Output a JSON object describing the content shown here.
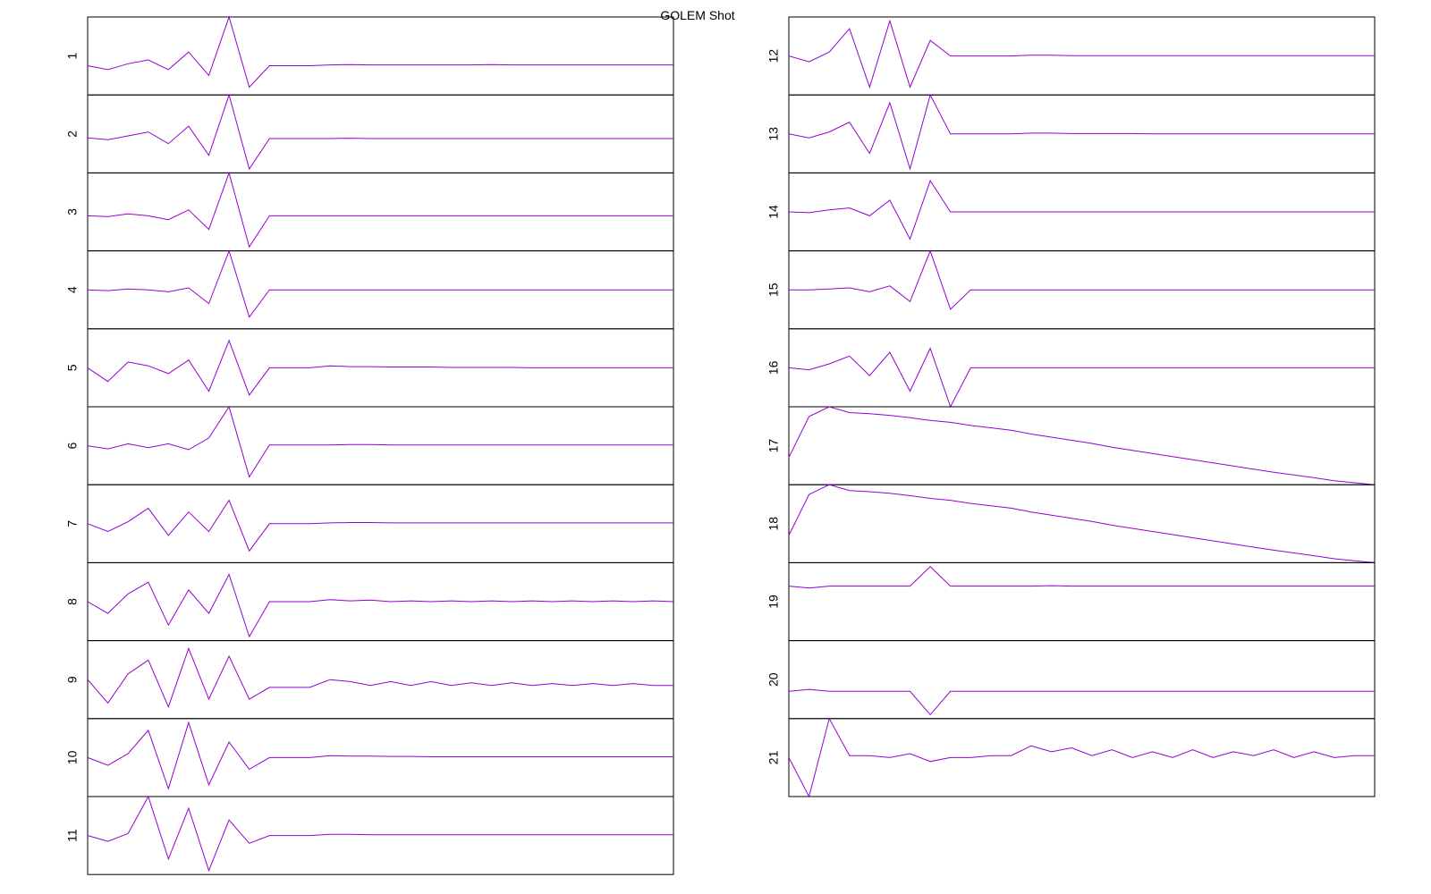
{
  "title": "GOLEM Shot",
  "chart_data": [
    {
      "type": "line",
      "title": "1",
      "color": "#9400d3",
      "ylim": [
        -1,
        1
      ],
      "values": [
        -0.25,
        -0.35,
        -0.2,
        -0.1,
        -0.35,
        0.1,
        -0.5,
        1,
        -0.8,
        -0.25,
        -0.25,
        -0.25,
        -0.23,
        -0.22,
        -0.23,
        -0.23,
        -0.23,
        -0.23,
        -0.23,
        -0.23,
        -0.22,
        -0.23,
        -0.23,
        -0.23,
        -0.23,
        -0.23,
        -0.23,
        -0.23,
        -0.23,
        -0.23
      ]
    },
    {
      "type": "line",
      "title": "2",
      "color": "#9400d3",
      "ylim": [
        -1,
        1
      ],
      "values": [
        -0.1,
        -0.15,
        -0.05,
        0.05,
        -0.25,
        0.2,
        -0.55,
        1,
        -0.9,
        -0.12,
        -0.12,
        -0.12,
        -0.12,
        -0.11,
        -0.12,
        -0.12,
        -0.12,
        -0.12,
        -0.12,
        -0.12,
        -0.12,
        -0.12,
        -0.12,
        -0.12,
        -0.12,
        -0.12,
        -0.12,
        -0.12,
        -0.12,
        -0.12
      ]
    },
    {
      "type": "line",
      "title": "3",
      "color": "#9400d3",
      "ylim": [
        -1,
        1
      ],
      "values": [
        -0.1,
        -0.12,
        -0.05,
        -0.1,
        -0.2,
        0.05,
        -0.45,
        1,
        -0.9,
        -0.1,
        -0.1,
        -0.1,
        -0.1,
        -0.1,
        -0.1,
        -0.1,
        -0.1,
        -0.1,
        -0.1,
        -0.1,
        -0.1,
        -0.1,
        -0.1,
        -0.1,
        -0.1,
        -0.1,
        -0.1,
        -0.1,
        -0.1,
        -0.1
      ]
    },
    {
      "type": "line",
      "title": "4",
      "color": "#9400d3",
      "ylim": [
        -1,
        1
      ],
      "values": [
        0.0,
        -0.02,
        0.02,
        0.0,
        -0.05,
        0.05,
        -0.35,
        1,
        -0.7,
        0.0,
        0.0,
        0.0,
        0.0,
        0.0,
        0.0,
        0.0,
        0.0,
        0.0,
        0.0,
        0.0,
        0.0,
        0.0,
        0.0,
        0.0,
        0.0,
        0.0,
        0.0,
        0.0,
        0.0,
        0.0
      ]
    },
    {
      "type": "line",
      "title": "5",
      "color": "#9400d3",
      "ylim": [
        -1,
        1
      ],
      "values": [
        0.0,
        -0.35,
        0.15,
        0.05,
        -0.15,
        0.2,
        -0.6,
        0.7,
        -0.7,
        0.0,
        0.0,
        0.0,
        0.05,
        0.03,
        0.03,
        0.02,
        0.02,
        0.02,
        0.01,
        0.01,
        0.01,
        0.01,
        0.0,
        0.0,
        0.0,
        0.0,
        0.0,
        0.0,
        0.0,
        0.0
      ]
    },
    {
      "type": "line",
      "title": "6",
      "color": "#9400d3",
      "ylim": [
        -1,
        1
      ],
      "values": [
        0.0,
        -0.08,
        0.05,
        -0.05,
        0.05,
        -0.1,
        0.2,
        1,
        -0.8,
        0.02,
        0.02,
        0.02,
        0.02,
        0.03,
        0.03,
        0.02,
        0.02,
        0.02,
        0.02,
        0.02,
        0.02,
        0.02,
        0.02,
        0.02,
        0.02,
        0.02,
        0.02,
        0.02,
        0.02,
        0.02
      ]
    },
    {
      "type": "line",
      "title": "7",
      "color": "#9400d3",
      "ylim": [
        -1,
        1
      ],
      "values": [
        0.0,
        -0.2,
        0.05,
        0.4,
        -0.3,
        0.3,
        -0.2,
        0.6,
        -0.7,
        0.0,
        0.0,
        0.0,
        0.02,
        0.03,
        0.03,
        0.02,
        0.02,
        0.02,
        0.02,
        0.02,
        0.02,
        0.02,
        0.02,
        0.02,
        0.02,
        0.02,
        0.02,
        0.02,
        0.02,
        0.02
      ]
    },
    {
      "type": "line",
      "title": "8",
      "color": "#9400d3",
      "ylim": [
        -1,
        1
      ],
      "values": [
        0.0,
        -0.3,
        0.2,
        0.5,
        -0.6,
        0.3,
        -0.3,
        0.7,
        -0.9,
        0.0,
        0.0,
        0.0,
        0.05,
        0.02,
        0.04,
        0.0,
        0.02,
        0.0,
        0.02,
        0.0,
        0.02,
        0.0,
        0.02,
        0.0,
        0.02,
        0.0,
        0.02,
        0.0,
        0.02,
        0.0
      ]
    },
    {
      "type": "line",
      "title": "9",
      "color": "#9400d3",
      "ylim": [
        -1,
        1
      ],
      "values": [
        0.0,
        -0.6,
        0.15,
        0.5,
        -0.7,
        0.8,
        -0.5,
        0.6,
        -0.5,
        -0.2,
        -0.2,
        -0.2,
        0.0,
        -0.05,
        -0.15,
        -0.05,
        -0.15,
        -0.05,
        -0.15,
        -0.08,
        -0.15,
        -0.08,
        -0.15,
        -0.1,
        -0.15,
        -0.1,
        -0.15,
        -0.1,
        -0.15,
        -0.15
      ]
    },
    {
      "type": "line",
      "title": "10",
      "color": "#9400d3",
      "ylim": [
        -1,
        1
      ],
      "values": [
        0.0,
        -0.2,
        0.1,
        0.7,
        -0.8,
        0.9,
        -0.7,
        0.4,
        -0.3,
        0.0,
        0.0,
        0.0,
        0.05,
        0.04,
        0.04,
        0.03,
        0.03,
        0.02,
        0.02,
        0.02,
        0.02,
        0.02,
        0.02,
        0.02,
        0.02,
        0.02,
        0.02,
        0.02,
        0.02,
        0.02
      ]
    },
    {
      "type": "line",
      "title": "11",
      "color": "#9400d3",
      "ylim": [
        -1,
        1
      ],
      "values": [
        0.0,
        -0.15,
        0.05,
        1,
        -0.6,
        0.7,
        -0.9,
        0.4,
        -0.2,
        0.0,
        0.0,
        0.0,
        0.03,
        0.03,
        0.02,
        0.02,
        0.02,
        0.02,
        0.02,
        0.02,
        0.02,
        0.02,
        0.02,
        0.02,
        0.02,
        0.02,
        0.02,
        0.02,
        0.02,
        0.02
      ]
    },
    {
      "type": "line",
      "title": "12",
      "color": "#9400d3",
      "ylim": [
        -1,
        1
      ],
      "values": [
        0.0,
        -0.15,
        0.1,
        0.7,
        -0.8,
        0.9,
        -0.8,
        0.4,
        0.0,
        0.0,
        0.0,
        0.0,
        0.02,
        0.02,
        0.01,
        0.01,
        0.01,
        0.01,
        0.01,
        0.01,
        0.01,
        0.01,
        0.01,
        0.01,
        0.01,
        0.01,
        0.01,
        0.01,
        0.01,
        0.01
      ]
    },
    {
      "type": "line",
      "title": "13",
      "color": "#9400d3",
      "ylim": [
        -1,
        1
      ],
      "values": [
        0.0,
        -0.1,
        0.05,
        0.3,
        -0.5,
        0.8,
        -0.9,
        1,
        0.0,
        0.0,
        0.0,
        0.0,
        0.02,
        0.02,
        0.01,
        0.01,
        0.01,
        0.01,
        0.0,
        0.0,
        0.0,
        0.0,
        0.0,
        0.0,
        0.0,
        0.0,
        0.0,
        0.0,
        0.0,
        0.0
      ]
    },
    {
      "type": "line",
      "title": "14",
      "color": "#9400d3",
      "ylim": [
        -1,
        1
      ],
      "values": [
        0.0,
        -0.02,
        0.05,
        0.1,
        -0.1,
        0.3,
        -0.7,
        0.8,
        0.0,
        0.0,
        0.0,
        0.0,
        0.0,
        0.0,
        0.0,
        0.0,
        0.0,
        0.0,
        0.0,
        0.0,
        0.0,
        0.0,
        0.0,
        0.0,
        0.0,
        0.0,
        0.0,
        0.0,
        0.0,
        0.0
      ]
    },
    {
      "type": "line",
      "title": "15",
      "color": "#9400d3",
      "ylim": [
        -1,
        1
      ],
      "values": [
        0.0,
        0.0,
        0.02,
        0.05,
        -0.05,
        0.1,
        -0.3,
        1,
        -0.5,
        0.0,
        0.0,
        0.0,
        0.0,
        0.0,
        0.0,
        0.0,
        0.0,
        0.0,
        0.0,
        0.0,
        0.0,
        0.0,
        0.0,
        0.0,
        0.0,
        0.0,
        0.0,
        0.0,
        0.0,
        0.0
      ]
    },
    {
      "type": "line",
      "title": "16",
      "color": "#9400d3",
      "ylim": [
        -1,
        1
      ],
      "values": [
        0.0,
        -0.05,
        0.1,
        0.3,
        -0.2,
        0.4,
        -0.6,
        0.5,
        -1,
        0.0,
        0.0,
        0.0,
        0.0,
        0.0,
        0.0,
        0.0,
        0.0,
        0.0,
        0.0,
        0.0,
        0.0,
        0.0,
        0.0,
        0.0,
        0.0,
        0.0,
        0.0,
        0.0,
        0.0,
        0.0
      ]
    },
    {
      "type": "line",
      "title": "17",
      "color": "#9400d3",
      "ylim": [
        -1,
        1
      ],
      "values": [
        -0.3,
        0.75,
        1,
        0.85,
        0.82,
        0.78,
        0.72,
        0.65,
        0.6,
        0.52,
        0.46,
        0.4,
        0.3,
        0.22,
        0.14,
        0.06,
        -0.04,
        -0.12,
        -0.2,
        -0.28,
        -0.36,
        -0.44,
        -0.52,
        -0.6,
        -0.68,
        -0.75,
        -0.82,
        -0.9,
        -0.95,
        -1
      ]
    },
    {
      "type": "line",
      "title": "18",
      "color": "#9400d3",
      "ylim": [
        -1,
        1
      ],
      "values": [
        -0.3,
        0.75,
        1,
        0.85,
        0.82,
        0.78,
        0.72,
        0.65,
        0.6,
        0.52,
        0.46,
        0.4,
        0.3,
        0.22,
        0.14,
        0.06,
        -0.04,
        -0.12,
        -0.2,
        -0.28,
        -0.36,
        -0.44,
        -0.52,
        -0.6,
        -0.68,
        -0.75,
        -0.82,
        -0.9,
        -0.95,
        -1
      ]
    },
    {
      "type": "line",
      "title": "19",
      "color": "#9400d3",
      "ylim": [
        -1,
        1
      ],
      "values": [
        0.4,
        0.35,
        0.4,
        0.4,
        0.4,
        0.4,
        0.4,
        0.9,
        0.4,
        0.4,
        0.4,
        0.4,
        0.4,
        0.41,
        0.4,
        0.4,
        0.4,
        0.4,
        0.4,
        0.4,
        0.4,
        0.4,
        0.4,
        0.4,
        0.4,
        0.4,
        0.4,
        0.4,
        0.4,
        0.4
      ]
    },
    {
      "type": "line",
      "title": "20",
      "color": "#9400d3",
      "ylim": [
        -1,
        1
      ],
      "values": [
        -0.3,
        -0.25,
        -0.3,
        -0.3,
        -0.3,
        -0.3,
        -0.3,
        -0.9,
        -0.3,
        -0.3,
        -0.3,
        -0.3,
        -0.3,
        -0.3,
        -0.3,
        -0.3,
        -0.3,
        -0.3,
        -0.3,
        -0.3,
        -0.3,
        -0.3,
        -0.3,
        -0.3,
        -0.3,
        -0.3,
        -0.3,
        -0.3,
        -0.3,
        -0.3
      ]
    },
    {
      "type": "line",
      "title": "21",
      "color": "#9400d3",
      "ylim": [
        -1,
        1
      ],
      "values": [
        0.0,
        -1,
        1,
        0.05,
        0.05,
        0.0,
        0.1,
        -0.1,
        0.0,
        0.0,
        0.05,
        0.05,
        0.3,
        0.15,
        0.25,
        0.05,
        0.2,
        0.0,
        0.15,
        0.0,
        0.2,
        0.0,
        0.15,
        0.05,
        0.2,
        0.0,
        0.15,
        0.0,
        0.05,
        0.05
      ]
    }
  ]
}
